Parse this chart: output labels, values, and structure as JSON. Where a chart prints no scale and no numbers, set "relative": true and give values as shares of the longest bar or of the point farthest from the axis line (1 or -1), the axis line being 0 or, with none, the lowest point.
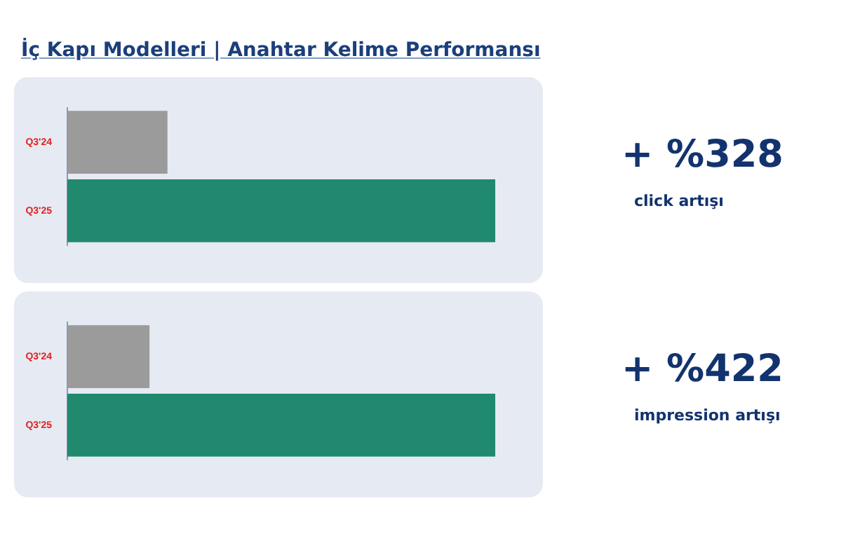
{
  "chart_data": [
    {
      "type": "bar",
      "orientation": "horizontal",
      "relative": true,
      "title": "İç Kapı Modelleri | Anahtar Kelime Performansı",
      "categories": [
        "Q3'24",
        "Q3'25"
      ],
      "values": [
        0.234,
        1
      ],
      "colors": [
        "#9b9b9b",
        "#20896e"
      ],
      "annotations": [
        "+ %328",
        "click artışı"
      ]
    },
    {
      "type": "bar",
      "orientation": "horizontal",
      "relative": true,
      "categories": [
        "Q3'24",
        "Q3'25"
      ],
      "values": [
        0.192,
        1
      ],
      "colors": [
        "#9b9b9b",
        "#20896e"
      ],
      "annotations": [
        "+ %422",
        "impression artışı"
      ]
    }
  ]
}
